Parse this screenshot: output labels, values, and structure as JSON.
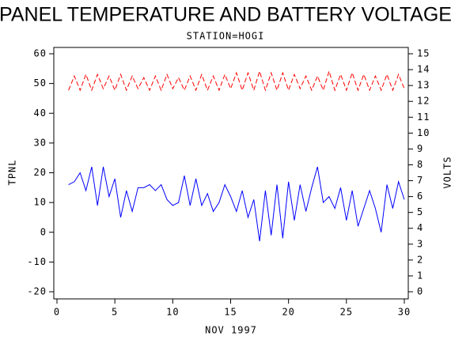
{
  "chart_data": {
    "type": "line",
    "title": "PANEL TEMPERATURE AND BATTERY VOLTAGE",
    "subtitle": "STATION=HOGI",
    "x_label": "NOV 1997",
    "y_label": "TPNL",
    "y2_label": "VOLTS",
    "x": [
      1,
      1.5,
      2,
      2.5,
      3,
      3.5,
      4,
      4.5,
      5,
      5.5,
      6,
      6.5,
      7,
      7.5,
      8,
      8.5,
      9,
      9.5,
      10,
      10.5,
      11,
      11.5,
      12,
      12.5,
      13,
      13.5,
      14,
      14.5,
      15,
      15.5,
      16,
      16.5,
      17,
      17.5,
      18,
      18.5,
      19,
      19.5,
      20,
      20.5,
      21,
      21.5,
      22,
      22.5,
      23,
      23.5,
      24,
      24.5,
      25,
      25.5,
      26,
      26.5,
      27,
      27.5,
      28,
      28.5,
      29,
      29.5,
      30
    ],
    "series": [
      {
        "name": "TPNL",
        "color": "#0000ff",
        "axis": "y",
        "values": [
          16,
          17,
          20,
          14,
          22,
          9,
          22,
          12,
          18,
          5,
          14,
          7,
          15,
          15,
          16,
          14,
          16,
          11,
          9,
          10,
          19,
          9,
          18,
          9,
          13,
          7,
          10,
          16,
          12,
          7,
          14,
          5,
          11,
          -3,
          14,
          -1,
          16,
          -2,
          17,
          4,
          16,
          7,
          15,
          22,
          10,
          12,
          8,
          15,
          4,
          14,
          2,
          8,
          14,
          8,
          0,
          16,
          8,
          17,
          11
        ]
      },
      {
        "name": "VOLTS",
        "color": "#ff0000",
        "axis": "y2",
        "dashed": true,
        "values": [
          12.7,
          13.6,
          12.7,
          13.7,
          12.7,
          13.7,
          12.8,
          13.6,
          12.7,
          13.7,
          12.7,
          13.6,
          12.8,
          13.5,
          12.7,
          13.6,
          12.7,
          13.7,
          12.8,
          13.5,
          12.7,
          13.6,
          12.7,
          13.7,
          12.7,
          13.6,
          12.7,
          13.7,
          12.8,
          13.8,
          12.7,
          13.8,
          12.7,
          13.9,
          12.7,
          13.8,
          12.7,
          13.8,
          12.7,
          13.7,
          12.8,
          13.6,
          12.7,
          13.6,
          12.7,
          13.9,
          12.7,
          13.7,
          12.7,
          13.8,
          12.7,
          13.7,
          12.7,
          13.6,
          12.7,
          13.7,
          12.7,
          13.7,
          12.8
        ]
      }
    ],
    "xlim": [
      0,
      30
    ],
    "xticks": [
      0,
      5,
      10,
      15,
      20,
      25,
      30
    ],
    "ylim": [
      -20,
      60
    ],
    "yticks": [
      -20,
      -10,
      0,
      10,
      20,
      30,
      40,
      50,
      60
    ],
    "y2lim": [
      0,
      15
    ],
    "y2ticks": [
      0,
      1,
      2,
      3,
      4,
      5,
      6,
      7,
      8,
      9,
      10,
      11,
      12,
      13,
      14,
      15
    ]
  }
}
